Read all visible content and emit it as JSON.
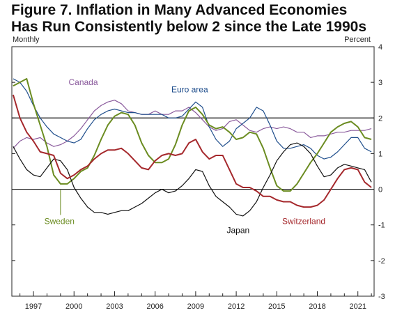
{
  "title_lines": [
    "Figure 7. Inflation in Many Advanced Economies",
    "Has Run Consistently below 2 since the Late 1990s"
  ],
  "chart_data": {
    "type": "line",
    "title": "Figure 7. Inflation in Many Advanced Economies Has Run Consistently below 2 since the Late 1990s",
    "frequency_label": "Monthly",
    "ylabel": "Percent",
    "xlim": [
      1995.4,
      2022.2
    ],
    "ylim": [
      -3,
      4
    ],
    "x_ticks": [
      1997,
      2000,
      2003,
      2006,
      2009,
      2012,
      2015,
      2018,
      2021
    ],
    "y_ticks": [
      4,
      3,
      2,
      1,
      0,
      -1,
      -2,
      -3
    ],
    "reference_lines": [
      2,
      0
    ],
    "grid": false,
    "legend": "direct labels on series",
    "series": [
      {
        "name": "Canada",
        "color": "#8a5a9c",
        "points": [
          [
            1995.5,
            1.15
          ],
          [
            1996.0,
            1.35
          ],
          [
            1996.5,
            1.45
          ],
          [
            1997.0,
            1.4
          ],
          [
            1997.5,
            1.45
          ],
          [
            1998.0,
            1.3
          ],
          [
            1998.5,
            1.2
          ],
          [
            1999.0,
            1.25
          ],
          [
            1999.5,
            1.35
          ],
          [
            2000.0,
            1.5
          ],
          [
            2000.5,
            1.7
          ],
          [
            2001.0,
            1.95
          ],
          [
            2001.5,
            2.2
          ],
          [
            2002.0,
            2.35
          ],
          [
            2002.5,
            2.45
          ],
          [
            2003.0,
            2.5
          ],
          [
            2003.5,
            2.4
          ],
          [
            2004.0,
            2.2
          ],
          [
            2004.5,
            2.15
          ],
          [
            2005.0,
            2.1
          ],
          [
            2005.5,
            2.1
          ],
          [
            2006.0,
            2.2
          ],
          [
            2006.5,
            2.1
          ],
          [
            2007.0,
            2.1
          ],
          [
            2007.5,
            2.2
          ],
          [
            2008.0,
            2.2
          ],
          [
            2008.5,
            2.3
          ],
          [
            2009.0,
            2.15
          ],
          [
            2009.5,
            1.95
          ],
          [
            2010.0,
            1.75
          ],
          [
            2010.5,
            1.65
          ],
          [
            2011.0,
            1.7
          ],
          [
            2011.5,
            1.9
          ],
          [
            2012.0,
            1.95
          ],
          [
            2012.5,
            1.8
          ],
          [
            2013.0,
            1.65
          ],
          [
            2013.5,
            1.6
          ],
          [
            2014.0,
            1.7
          ],
          [
            2014.5,
            1.75
          ],
          [
            2015.0,
            1.7
          ],
          [
            2015.5,
            1.75
          ],
          [
            2016.0,
            1.7
          ],
          [
            2016.5,
            1.6
          ],
          [
            2017.0,
            1.6
          ],
          [
            2017.5,
            1.45
          ],
          [
            2018.0,
            1.5
          ],
          [
            2018.5,
            1.5
          ],
          [
            2019.0,
            1.55
          ],
          [
            2019.5,
            1.6
          ],
          [
            2020.0,
            1.6
          ],
          [
            2020.5,
            1.65
          ],
          [
            2021.0,
            1.65
          ],
          [
            2021.5,
            1.65
          ],
          [
            2022.0,
            1.7
          ]
        ]
      },
      {
        "name": "Euro area",
        "color": "#1f4e8c",
        "points": [
          [
            1995.5,
            3.1
          ],
          [
            1996.0,
            3.0
          ],
          [
            1996.5,
            2.75
          ],
          [
            1997.0,
            2.35
          ],
          [
            1997.5,
            2.0
          ],
          [
            1998.0,
            1.75
          ],
          [
            1998.5,
            1.55
          ],
          [
            1999.0,
            1.45
          ],
          [
            1999.5,
            1.35
          ],
          [
            2000.0,
            1.3
          ],
          [
            2000.5,
            1.4
          ],
          [
            2001.0,
            1.7
          ],
          [
            2001.5,
            1.95
          ],
          [
            2002.0,
            2.1
          ],
          [
            2002.5,
            2.2
          ],
          [
            2003.0,
            2.25
          ],
          [
            2003.5,
            2.2
          ],
          [
            2004.0,
            2.15
          ],
          [
            2004.5,
            2.15
          ],
          [
            2005.0,
            2.1
          ],
          [
            2005.5,
            2.1
          ],
          [
            2006.0,
            2.1
          ],
          [
            2006.5,
            2.1
          ],
          [
            2007.0,
            2.0
          ],
          [
            2007.5,
            2.0
          ],
          [
            2008.0,
            2.05
          ],
          [
            2008.5,
            2.25
          ],
          [
            2009.0,
            2.45
          ],
          [
            2009.5,
            2.3
          ],
          [
            2010.0,
            1.75
          ],
          [
            2010.5,
            1.4
          ],
          [
            2011.0,
            1.2
          ],
          [
            2011.5,
            1.35
          ],
          [
            2012.0,
            1.7
          ],
          [
            2012.5,
            1.85
          ],
          [
            2013.0,
            2.0
          ],
          [
            2013.5,
            2.3
          ],
          [
            2014.0,
            2.2
          ],
          [
            2014.5,
            1.8
          ],
          [
            2015.0,
            1.35
          ],
          [
            2015.5,
            1.15
          ],
          [
            2016.0,
            1.15
          ],
          [
            2016.5,
            1.2
          ],
          [
            2017.0,
            1.25
          ],
          [
            2017.5,
            1.15
          ],
          [
            2018.0,
            0.95
          ],
          [
            2018.5,
            0.85
          ],
          [
            2019.0,
            0.9
          ],
          [
            2019.5,
            1.05
          ],
          [
            2020.0,
            1.25
          ],
          [
            2020.5,
            1.45
          ],
          [
            2021.0,
            1.45
          ],
          [
            2021.5,
            1.15
          ],
          [
            2022.0,
            1.05
          ]
        ]
      },
      {
        "name": "Sweden",
        "color": "#6b8c21",
        "points": [
          [
            1995.5,
            2.9
          ],
          [
            1996.0,
            3.0
          ],
          [
            1996.5,
            3.1
          ],
          [
            1997.0,
            2.4
          ],
          [
            1997.5,
            1.8
          ],
          [
            1998.0,
            1.2
          ],
          [
            1998.5,
            0.4
          ],
          [
            1999.0,
            0.15
          ],
          [
            1999.5,
            0.15
          ],
          [
            2000.0,
            0.3
          ],
          [
            2000.5,
            0.5
          ],
          [
            2001.0,
            0.6
          ],
          [
            2001.5,
            0.95
          ],
          [
            2002.0,
            1.4
          ],
          [
            2002.5,
            1.8
          ],
          [
            2003.0,
            2.05
          ],
          [
            2003.5,
            2.15
          ],
          [
            2004.0,
            2.1
          ],
          [
            2004.5,
            1.8
          ],
          [
            2005.0,
            1.3
          ],
          [
            2005.5,
            0.95
          ],
          [
            2006.0,
            0.75
          ],
          [
            2006.5,
            0.75
          ],
          [
            2007.0,
            0.85
          ],
          [
            2007.5,
            1.25
          ],
          [
            2008.0,
            1.8
          ],
          [
            2008.5,
            2.2
          ],
          [
            2009.0,
            2.3
          ],
          [
            2009.5,
            2.1
          ],
          [
            2010.0,
            1.8
          ],
          [
            2010.5,
            1.7
          ],
          [
            2011.0,
            1.75
          ],
          [
            2011.5,
            1.6
          ],
          [
            2012.0,
            1.4
          ],
          [
            2012.5,
            1.45
          ],
          [
            2013.0,
            1.6
          ],
          [
            2013.5,
            1.55
          ],
          [
            2014.0,
            1.15
          ],
          [
            2014.5,
            0.6
          ],
          [
            2015.0,
            0.1
          ],
          [
            2015.5,
            -0.05
          ],
          [
            2016.0,
            -0.05
          ],
          [
            2016.5,
            0.15
          ],
          [
            2017.0,
            0.45
          ],
          [
            2017.5,
            0.75
          ],
          [
            2018.0,
            1.0
          ],
          [
            2018.5,
            1.3
          ],
          [
            2019.0,
            1.6
          ],
          [
            2019.5,
            1.75
          ],
          [
            2020.0,
            1.85
          ],
          [
            2020.5,
            1.9
          ],
          [
            2021.0,
            1.75
          ],
          [
            2021.5,
            1.45
          ],
          [
            2022.0,
            1.4
          ]
        ]
      },
      {
        "name": "Japan",
        "color": "#111111",
        "points": [
          [
            1995.5,
            1.2
          ],
          [
            1996.0,
            0.85
          ],
          [
            1996.5,
            0.55
          ],
          [
            1997.0,
            0.4
          ],
          [
            1997.5,
            0.35
          ],
          [
            1998.0,
            0.6
          ],
          [
            1998.5,
            0.85
          ],
          [
            1999.0,
            0.8
          ],
          [
            1999.5,
            0.55
          ],
          [
            2000.0,
            0.05
          ],
          [
            2000.5,
            -0.25
          ],
          [
            2001.0,
            -0.5
          ],
          [
            2001.5,
            -0.65
          ],
          [
            2002.0,
            -0.65
          ],
          [
            2002.5,
            -0.7
          ],
          [
            2003.0,
            -0.65
          ],
          [
            2003.5,
            -0.6
          ],
          [
            2004.0,
            -0.6
          ],
          [
            2004.5,
            -0.5
          ],
          [
            2005.0,
            -0.4
          ],
          [
            2005.5,
            -0.25
          ],
          [
            2006.0,
            -0.1
          ],
          [
            2006.5,
            0.0
          ],
          [
            2007.0,
            -0.1
          ],
          [
            2007.5,
            -0.05
          ],
          [
            2008.0,
            0.1
          ],
          [
            2008.5,
            0.3
          ],
          [
            2009.0,
            0.55
          ],
          [
            2009.5,
            0.5
          ],
          [
            2010.0,
            0.1
          ],
          [
            2010.5,
            -0.2
          ],
          [
            2011.0,
            -0.35
          ],
          [
            2011.5,
            -0.5
          ],
          [
            2012.0,
            -0.7
          ],
          [
            2012.5,
            -0.75
          ],
          [
            2013.0,
            -0.6
          ],
          [
            2013.5,
            -0.35
          ],
          [
            2014.0,
            0.05
          ],
          [
            2014.5,
            0.4
          ],
          [
            2015.0,
            0.8
          ],
          [
            2015.5,
            1.05
          ],
          [
            2016.0,
            1.25
          ],
          [
            2016.5,
            1.3
          ],
          [
            2017.0,
            1.2
          ],
          [
            2017.5,
            1.0
          ],
          [
            2018.0,
            0.65
          ],
          [
            2018.5,
            0.35
          ],
          [
            2019.0,
            0.4
          ],
          [
            2019.5,
            0.6
          ],
          [
            2020.0,
            0.7
          ],
          [
            2020.5,
            0.65
          ],
          [
            2021.0,
            0.6
          ],
          [
            2021.5,
            0.55
          ],
          [
            2022.0,
            0.2
          ]
        ]
      },
      {
        "name": "Switzerland",
        "color": "#a5282c",
        "points": [
          [
            1995.5,
            2.65
          ],
          [
            1996.0,
            2.0
          ],
          [
            1996.5,
            1.6
          ],
          [
            1997.0,
            1.35
          ],
          [
            1997.5,
            1.05
          ],
          [
            1998.0,
            1.0
          ],
          [
            1998.5,
            0.95
          ],
          [
            1999.0,
            0.45
          ],
          [
            1999.5,
            0.3
          ],
          [
            2000.0,
            0.4
          ],
          [
            2000.5,
            0.55
          ],
          [
            2001.0,
            0.65
          ],
          [
            2001.5,
            0.85
          ],
          [
            2002.0,
            1.0
          ],
          [
            2002.5,
            1.1
          ],
          [
            2003.0,
            1.1
          ],
          [
            2003.5,
            1.15
          ],
          [
            2004.0,
            1.0
          ],
          [
            2004.5,
            0.8
          ],
          [
            2005.0,
            0.6
          ],
          [
            2005.5,
            0.55
          ],
          [
            2006.0,
            0.8
          ],
          [
            2006.5,
            0.95
          ],
          [
            2007.0,
            1.0
          ],
          [
            2007.5,
            0.95
          ],
          [
            2008.0,
            1.0
          ],
          [
            2008.5,
            1.3
          ],
          [
            2009.0,
            1.4
          ],
          [
            2009.5,
            1.05
          ],
          [
            2010.0,
            0.85
          ],
          [
            2010.5,
            0.95
          ],
          [
            2011.0,
            0.95
          ],
          [
            2011.5,
            0.55
          ],
          [
            2012.0,
            0.15
          ],
          [
            2012.5,
            0.05
          ],
          [
            2013.0,
            0.05
          ],
          [
            2013.5,
            -0.05
          ],
          [
            2014.0,
            -0.2
          ],
          [
            2014.5,
            -0.2
          ],
          [
            2015.0,
            -0.3
          ],
          [
            2015.5,
            -0.35
          ],
          [
            2016.0,
            -0.35
          ],
          [
            2016.5,
            -0.45
          ],
          [
            2017.0,
            -0.5
          ],
          [
            2017.5,
            -0.5
          ],
          [
            2018.0,
            -0.45
          ],
          [
            2018.5,
            -0.3
          ],
          [
            2019.0,
            0.0
          ],
          [
            2019.5,
            0.3
          ],
          [
            2020.0,
            0.55
          ],
          [
            2020.5,
            0.6
          ],
          [
            2021.0,
            0.55
          ],
          [
            2021.5,
            0.2
          ],
          [
            2022.0,
            0.05
          ]
        ]
      }
    ],
    "annotations": [
      {
        "series": "Canada",
        "text": "Canada",
        "x": 1999.6,
        "y": 3.0
      },
      {
        "series": "Euro area",
        "text": "Euro area",
        "x": 2007.2,
        "y": 2.8
      },
      {
        "series": "Sweden",
        "text": "Sweden",
        "x": 1997.8,
        "y": -0.9
      },
      {
        "series": "Japan",
        "text": "Japan",
        "x": 2011.3,
        "y": -1.15
      },
      {
        "series": "Switzerland",
        "text": "Switzerland",
        "x": 2015.4,
        "y": -0.9
      }
    ]
  }
}
